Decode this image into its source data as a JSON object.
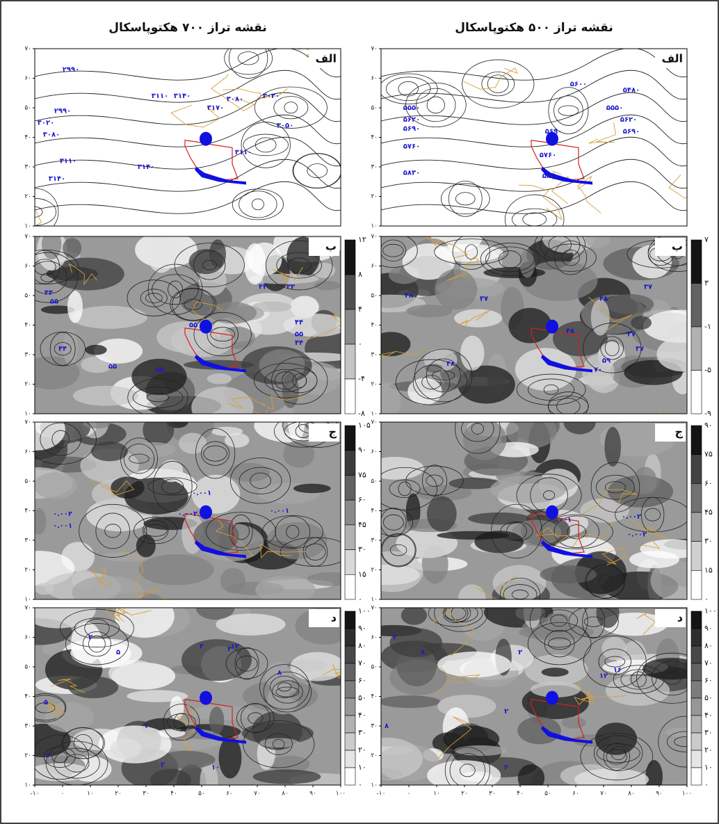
{
  "columns": [
    {
      "title": "نقشه تراز ۷۰۰ هکتوپاسکال",
      "panels": [
        {
          "label": "الف",
          "colorbar": [],
          "contour_labels": [
            "۲۹۹۰",
            "۳۱۱۰",
            "۳۱۴۰",
            "۳۱۷۰",
            "۳۰۸۰",
            "۳۰۲۰",
            "۳۰۵۰",
            "۳۰۲۰",
            "۲۹۹۰",
            "۳۰۸۰",
            "۳۱۱۰",
            "۳۱۴۰",
            "۳۱۴۰",
            "۳۱۱۰"
          ]
        },
        {
          "label": "ب",
          "colorbar": [
            "۱۲",
            "۸",
            "۴",
            "۰",
            "-۴",
            "-۸"
          ],
          "contour_labels": [
            "۴۴",
            "۳۳",
            "۵۵",
            "۴۴",
            "۵۵",
            "۴۴",
            "۵۵",
            "۴۴",
            "۴۴",
            "۵۵",
            "۵۵"
          ]
        },
        {
          "label": "ج",
          "colorbar": [
            "۱۰۵",
            "۹۰",
            "۷۵",
            "۶۰",
            "۴۵",
            "۳۰",
            "۱۵",
            "۰"
          ],
          "contour_labels": [
            "۰.۰۰۱",
            "۰.۰۰۲",
            "۰.۰۰۱",
            "۰.۰۰۲",
            "۰.۰۰۱"
          ]
        },
        {
          "label": "د",
          "colorbar": [
            "۱۰۰",
            "۹۰",
            "۸۰",
            "۷۰",
            "۶۰",
            "۵۰",
            "۴۰",
            "۳۰",
            "۲۰",
            "۱۰",
            "۰"
          ],
          "contour_labels": [
            "۲",
            "۵",
            "۲",
            "۲",
            "۱۲",
            "۸",
            "۵",
            "۱",
            "۲",
            "۲",
            "۱۰"
          ]
        }
      ]
    },
    {
      "title": "نقشه تراز ۵۰۰ هکتوپاسکال",
      "panels": [
        {
          "label": "الف",
          "colorbar": [],
          "contour_labels": [
            "۵۶۰۰",
            "۵۴۸۰",
            "۵۵۵۰",
            "۵۶۲۰",
            "۵۶۹۰",
            "۵۵۵۰",
            "۵۶۲۰",
            "۵۶۹۰",
            "۵۷۶۰",
            "۵۸۳۰",
            "۵۶۹۰",
            "۵۷۶۰",
            "۵۸۳۰"
          ]
        },
        {
          "label": "ب",
          "colorbar": [
            "۷",
            "۳",
            "-۱",
            "-۵",
            "-۹"
          ],
          "contour_labels": [
            "۳۷",
            "۴۸",
            "۳۷",
            "۴۸",
            "۴۸",
            "۳۷",
            "۵۹",
            "۷۰",
            "۳۷",
            "۴۸"
          ]
        },
        {
          "label": "ج",
          "colorbar": [
            "۹۰",
            "۷۵",
            "۶۰",
            "۴۵",
            "۳۰",
            "۱۵",
            "۰"
          ],
          "contour_labels": [
            "۰.۰۰۲",
            "۰.۰۰۱",
            "۰.۰۰۲"
          ]
        },
        {
          "label": "د",
          "colorbar": [
            "۱۰۰",
            "۹۰",
            "۸۰",
            "۷۰",
            "۶۰",
            "۵۰",
            "۴۰",
            "۳۰",
            "۲۰",
            "۱۰",
            "۰"
          ],
          "contour_labels": [
            "۲",
            "۸",
            "۲",
            "۱۶",
            "۱۲",
            "۲",
            "۸",
            "۲"
          ]
        }
      ]
    }
  ],
  "y_ticks": [
    "۷۰",
    "۶۰",
    "۵۰",
    "۴۰",
    "۳۰",
    "۲۰",
    "۱۰"
  ],
  "x_ticks": [
    "-۱۰",
    "۰",
    "۱۰",
    "۲۰",
    "۳۰",
    "۴۰",
    "۵۰",
    "۶۰",
    "۷۰",
    "۸۰",
    "۹۰",
    "۱۰۰"
  ]
}
